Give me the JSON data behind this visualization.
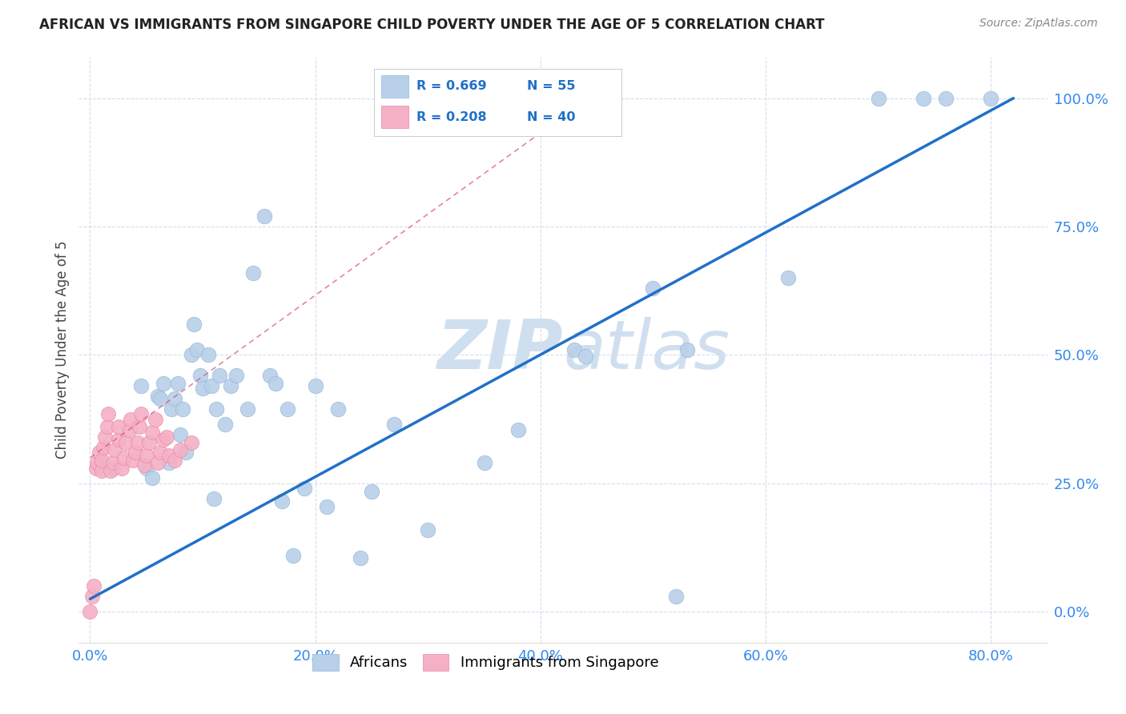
{
  "title": "AFRICAN VS IMMIGRANTS FROM SINGAPORE CHILD POVERTY UNDER THE AGE OF 5 CORRELATION CHART",
  "source": "Source: ZipAtlas.com",
  "xlabel_ticks": [
    "0.0%",
    "20.0%",
    "40.0%",
    "60.0%",
    "80.0%"
  ],
  "ylabel_ticks": [
    "0.0%",
    "25.0%",
    "50.0%",
    "75.0%",
    "100.0%"
  ],
  "xlabel_tick_vals": [
    0.0,
    0.2,
    0.4,
    0.6,
    0.8
  ],
  "ylabel_tick_vals": [
    0.0,
    0.25,
    0.5,
    0.75,
    1.0
  ],
  "xlim": [
    -0.01,
    0.85
  ],
  "ylim": [
    -0.06,
    1.08
  ],
  "legend_r1": "R = 0.669",
  "legend_n1": "N = 55",
  "legend_r2": "R = 0.208",
  "legend_n2": "N = 40",
  "african_color": "#b8d0e8",
  "african_edge": "#90b8d8",
  "singapore_color": "#f5b0c5",
  "singapore_edge": "#e888a8",
  "regression_blue": "#2070c8",
  "regression_pink": "#d85080",
  "watermark_color": "#d0dff0",
  "title_color": "#222222",
  "tick_color": "#3388ee",
  "ylabel": "Child Poverty Under the Age of 5",
  "african_scatter_x": [
    0.02,
    0.045,
    0.05,
    0.055,
    0.06,
    0.062,
    0.065,
    0.07,
    0.072,
    0.075,
    0.078,
    0.08,
    0.082,
    0.085,
    0.09,
    0.092,
    0.095,
    0.098,
    0.1,
    0.105,
    0.108,
    0.11,
    0.112,
    0.115,
    0.12,
    0.125,
    0.13,
    0.14,
    0.145,
    0.155,
    0.16,
    0.165,
    0.17,
    0.175,
    0.18,
    0.19,
    0.2,
    0.21,
    0.22,
    0.24,
    0.25,
    0.27,
    0.3,
    0.35,
    0.38,
    0.43,
    0.44,
    0.5,
    0.52,
    0.53,
    0.62,
    0.7,
    0.74,
    0.76,
    0.8
  ],
  "african_scatter_y": [
    0.28,
    0.44,
    0.28,
    0.26,
    0.42,
    0.415,
    0.445,
    0.29,
    0.395,
    0.415,
    0.445,
    0.345,
    0.395,
    0.31,
    0.5,
    0.56,
    0.51,
    0.46,
    0.435,
    0.5,
    0.44,
    0.22,
    0.395,
    0.46,
    0.365,
    0.44,
    0.46,
    0.395,
    0.66,
    0.77,
    0.46,
    0.445,
    0.215,
    0.395,
    0.11,
    0.24,
    0.44,
    0.205,
    0.395,
    0.105,
    0.235,
    0.365,
    0.16,
    0.29,
    0.355,
    0.51,
    0.498,
    0.63,
    0.03,
    0.51,
    0.65,
    1.0,
    1.0,
    1.0,
    1.0
  ],
  "singapore_scatter_x": [
    0.0,
    0.002,
    0.003,
    0.005,
    0.006,
    0.008,
    0.01,
    0.01,
    0.012,
    0.013,
    0.015,
    0.016,
    0.018,
    0.02,
    0.022,
    0.025,
    0.025,
    0.028,
    0.03,
    0.032,
    0.035,
    0.036,
    0.038,
    0.04,
    0.042,
    0.044,
    0.045,
    0.048,
    0.05,
    0.052,
    0.055,
    0.058,
    0.06,
    0.062,
    0.065,
    0.068,
    0.07,
    0.075,
    0.08,
    0.09
  ],
  "singapore_scatter_y": [
    0.0,
    0.03,
    0.05,
    0.28,
    0.29,
    0.31,
    0.275,
    0.295,
    0.32,
    0.34,
    0.36,
    0.385,
    0.275,
    0.29,
    0.315,
    0.335,
    0.36,
    0.28,
    0.3,
    0.33,
    0.355,
    0.375,
    0.295,
    0.31,
    0.33,
    0.36,
    0.385,
    0.285,
    0.305,
    0.33,
    0.35,
    0.375,
    0.29,
    0.31,
    0.335,
    0.34,
    0.305,
    0.295,
    0.315,
    0.33
  ],
  "blue_line_x": [
    0.0,
    0.82
  ],
  "blue_line_y": [
    0.025,
    1.0
  ],
  "pink_line_x": [
    0.0,
    0.43
  ],
  "pink_line_y": [
    0.3,
    0.98
  ]
}
